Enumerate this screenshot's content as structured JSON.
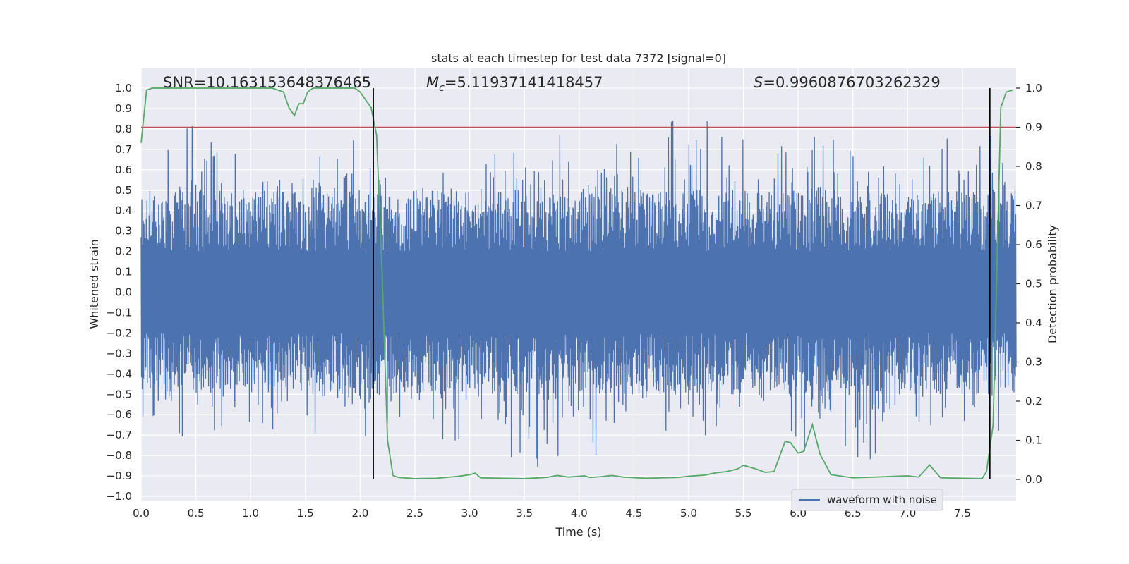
{
  "chart_data": {
    "type": "line",
    "title": "stats at each timestep for test data 7372 [signal=0]",
    "xlabel": "Time (s)",
    "ylabel": "Whitened strain",
    "y2label": "Detection probability",
    "xlim": [
      0.0,
      7.99
    ],
    "ylim": [
      -1.0,
      1.0
    ],
    "y2lim": [
      -0.045,
      1.0
    ],
    "x_ticks": [
      0.0,
      0.5,
      1.0,
      1.5,
      2.0,
      2.5,
      3.0,
      3.5,
      4.0,
      4.5,
      5.0,
      5.5,
      6.0,
      6.5,
      7.0,
      7.5
    ],
    "x_tick_labels": [
      "0.0",
      "0.5",
      "1.0",
      "1.5",
      "2.0",
      "2.5",
      "3.0",
      "3.5",
      "4.0",
      "4.5",
      "5.0",
      "5.5",
      "6.0",
      "6.5",
      "7.0",
      "7.5"
    ],
    "y_ticks": [
      1.0,
      0.9,
      0.8,
      0.7,
      0.6,
      0.5,
      0.4,
      0.3,
      0.2,
      0.1,
      0.0,
      -0.1,
      -0.2,
      -0.3,
      -0.4,
      -0.5,
      -0.6,
      -0.7,
      -0.8,
      -0.9,
      -1.0
    ],
    "y_tick_labels": [
      "1.0",
      "0.9",
      "0.8",
      "0.7",
      "0.6",
      "0.5",
      "0.4",
      "0.3",
      "0.2",
      "0.1",
      "0.0",
      "−0.1",
      "−0.2",
      "−0.3",
      "−0.4",
      "−0.5",
      "−0.6",
      "−0.7",
      "−0.8",
      "−0.9",
      "−1.0"
    ],
    "y2_ticks": [
      1.0,
      0.9,
      0.8,
      0.7,
      0.6,
      0.5,
      0.4,
      0.3,
      0.2,
      0.1,
      0.0
    ],
    "y2_tick_labels": [
      "1.0",
      "0.9",
      "0.8",
      "0.7",
      "0.6",
      "0.5",
      "0.4",
      "0.3",
      "0.2",
      "0.1",
      "0.0"
    ],
    "grid": true,
    "annotations": {
      "snr": "SNR=10.163153648376465",
      "mc_symbol": "M",
      "mc_sub": "c",
      "mc_value": "=5.11937141418457",
      "s_symbol": "S",
      "s_value": "=0.9960876703262329"
    },
    "threshold": {
      "y2": 0.9,
      "color": "#c44e52"
    },
    "vertical_lines": [
      2.12,
      7.75
    ],
    "legend": {
      "position": "lower right",
      "entries": [
        "waveform with noise"
      ]
    },
    "series": [
      {
        "name": "waveform with noise",
        "axis": "left",
        "color": "#4c72b0",
        "envelope": {
          "x": [
            0.0,
            0.25,
            0.5,
            0.75,
            1.0,
            1.25,
            1.5,
            1.75,
            2.0,
            2.25,
            2.5,
            2.75,
            3.0,
            3.25,
            3.5,
            3.75,
            4.0,
            4.25,
            4.5,
            4.75,
            5.0,
            5.25,
            5.5,
            5.75,
            6.0,
            6.25,
            6.5,
            6.75,
            7.0,
            7.25,
            7.5,
            7.75,
            7.99
          ],
          "high": [
            0.45,
            0.72,
            0.89,
            0.72,
            0.7,
            0.7,
            0.85,
            0.7,
            0.86,
            0.62,
            0.64,
            0.68,
            0.62,
            0.8,
            0.7,
            0.82,
            0.8,
            0.78,
            0.72,
            0.75,
            1.0,
            0.8,
            0.8,
            0.75,
            0.8,
            0.78,
            0.76,
            0.8,
            0.78,
            0.94,
            0.8,
            0.78,
            0.66
          ],
          "low": [
            -0.83,
            -0.7,
            -0.75,
            -0.7,
            -0.72,
            -0.78,
            -0.7,
            -0.7,
            -0.72,
            -0.74,
            -0.65,
            -0.76,
            -0.75,
            -0.82,
            -0.91,
            -0.84,
            -0.78,
            -0.82,
            -0.8,
            -0.75,
            -0.7,
            -0.73,
            -0.7,
            -0.8,
            -0.78,
            -0.82,
            -0.85,
            -0.8,
            -0.79,
            -0.83,
            -0.7,
            -0.72,
            -0.6
          ]
        }
      },
      {
        "name": "detection probability",
        "axis": "right",
        "color": "#55a868",
        "x": [
          0.0,
          0.05,
          0.1,
          0.2,
          0.4,
          0.6,
          0.8,
          1.0,
          1.1,
          1.2,
          1.3,
          1.35,
          1.4,
          1.44,
          1.48,
          1.52,
          1.57,
          1.65,
          1.8,
          1.95,
          2.0,
          2.05,
          2.1,
          2.15,
          2.2,
          2.25,
          2.3,
          2.35,
          2.5,
          2.7,
          2.9,
          3.0,
          3.05,
          3.1,
          3.3,
          3.5,
          3.7,
          3.8,
          3.9,
          4.05,
          4.1,
          4.2,
          4.3,
          4.4,
          4.6,
          4.9,
          5.0,
          5.15,
          5.25,
          5.35,
          5.45,
          5.5,
          5.6,
          5.7,
          5.78,
          5.88,
          5.93,
          6.0,
          6.05,
          6.13,
          6.2,
          6.3,
          6.5,
          6.7,
          6.9,
          7.0,
          7.1,
          7.2,
          7.3,
          7.5,
          7.68,
          7.72,
          7.78,
          7.85,
          7.9,
          7.96
        ],
        "y": [
          0.86,
          0.995,
          1.0,
          1.0,
          1.0,
          1.0,
          1.0,
          1.0,
          1.0,
          1.0,
          0.99,
          0.95,
          0.93,
          0.96,
          0.96,
          0.99,
          1.0,
          1.0,
          1.0,
          1.0,
          0.99,
          0.97,
          0.95,
          0.88,
          0.53,
          0.1,
          0.01,
          0.005,
          0.002,
          0.003,
          0.008,
          0.012,
          0.016,
          0.004,
          0.003,
          0.002,
          0.005,
          0.01,
          0.006,
          0.009,
          0.005,
          0.007,
          0.01,
          0.006,
          0.003,
          0.005,
          0.008,
          0.011,
          0.017,
          0.02,
          0.027,
          0.036,
          0.028,
          0.018,
          0.02,
          0.097,
          0.094,
          0.067,
          0.072,
          0.14,
          0.064,
          0.012,
          0.004,
          0.006,
          0.008,
          0.009,
          0.006,
          0.037,
          0.004,
          0.003,
          0.002,
          0.02,
          0.14,
          0.95,
          0.99,
          0.995
        ]
      }
    ]
  }
}
